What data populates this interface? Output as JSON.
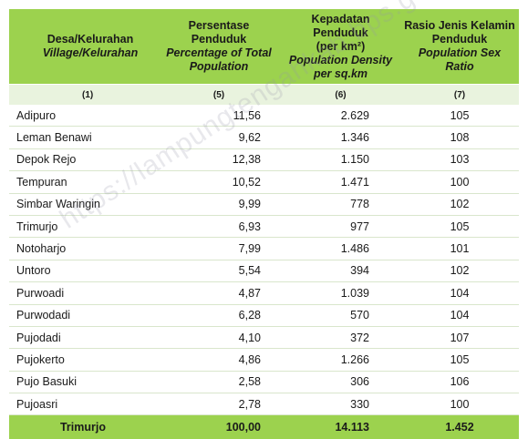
{
  "header": {
    "col1": {
      "id": "Desa/Kelurahan",
      "en": "Village/Kelurahan"
    },
    "col2": {
      "id": "Persentase Penduduk",
      "en1": "Percentage of Total",
      "en2": "Population"
    },
    "col3": {
      "id1": "Kepadatan Penduduk",
      "id2": "(per km²)",
      "en1": "Population Density",
      "en2": "per sq.km"
    },
    "col4": {
      "id1": "Rasio Jenis Kelamin",
      "id2": "Penduduk",
      "en": "Population Sex Ratio"
    }
  },
  "column_numbers": [
    "(1)",
    "(5)",
    "(6)",
    "(7)"
  ],
  "rows": [
    {
      "name": "Adipuro",
      "pct": "11,56",
      "density": "2.629",
      "ratio": "105"
    },
    {
      "name": "Leman Benawi",
      "pct": "9,62",
      "density": "1.346",
      "ratio": "108"
    },
    {
      "name": "Depok Rejo",
      "pct": "12,38",
      "density": "1.150",
      "ratio": "103"
    },
    {
      "name": "Tempuran",
      "pct": "10,52",
      "density": "1.471",
      "ratio": "100"
    },
    {
      "name": "Simbar Waringin",
      "pct": "9,99",
      "density": "778",
      "ratio": "102"
    },
    {
      "name": "Trimurjo",
      "pct": "6,93",
      "density": "977",
      "ratio": "105"
    },
    {
      "name": "Notoharjo",
      "pct": "7,99",
      "density": "1.486",
      "ratio": "101"
    },
    {
      "name": "Untoro",
      "pct": "5,54",
      "density": "394",
      "ratio": "102"
    },
    {
      "name": "Purwoadi",
      "pct": "4,87",
      "density": "1.039",
      "ratio": "104"
    },
    {
      "name": "Purwodadi",
      "pct": "6,28",
      "density": "570",
      "ratio": "104"
    },
    {
      "name": "Pujodadi",
      "pct": "4,10",
      "density": "372",
      "ratio": "107"
    },
    {
      "name": "Pujokerto",
      "pct": "4,86",
      "density": "1.266",
      "ratio": "105"
    },
    {
      "name": "Pujo Basuki",
      "pct": "2,58",
      "density": "306",
      "ratio": "106"
    },
    {
      "name": "Pujoasri",
      "pct": "2,78",
      "density": "330",
      "ratio": "100"
    }
  ],
  "total": {
    "name": "Trimurjo",
    "pct": "100,00",
    "density": "14.113",
    "ratio": "1.452"
  },
  "watermark": "https://lampungtengahkab.bps.go.id",
  "colors": {
    "header_green": "#9cd24e",
    "subheader_green": "#e9f3de",
    "row_divider": "#d9e6cc"
  }
}
